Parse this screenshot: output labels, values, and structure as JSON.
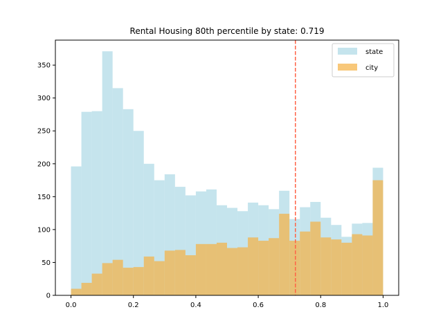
{
  "chart_data": {
    "type": "histogram",
    "title": "Rental Housing 80th percentile by state: 0.719",
    "xlabel": "",
    "ylabel": "",
    "xlim": [
      -0.05,
      1.05
    ],
    "ylim": [
      0,
      388
    ],
    "x_ticks": [
      0.0,
      0.2,
      0.4,
      0.6,
      0.8,
      1.0
    ],
    "x_tick_labels": [
      "0.0",
      "0.2",
      "0.4",
      "0.6",
      "0.8",
      "1.0"
    ],
    "y_ticks": [
      0,
      50,
      100,
      150,
      200,
      250,
      300,
      350
    ],
    "y_tick_labels": [
      "0",
      "50",
      "100",
      "150",
      "200",
      "250",
      "300",
      "350"
    ],
    "bins": 30,
    "bin_range": [
      0,
      1
    ],
    "series": [
      {
        "name": "state",
        "color": "#add8e6",
        "opacity": 0.7,
        "values": [
          196,
          279,
          280,
          371,
          315,
          283,
          250,
          200,
          175,
          184,
          165,
          152,
          158,
          161,
          137,
          133,
          128,
          141,
          137,
          131,
          159,
          116,
          134,
          142,
          118,
          107,
          89,
          109,
          110,
          194
        ]
      },
      {
        "name": "city",
        "color": "#f5b041",
        "opacity": 0.7,
        "values": [
          10,
          19,
          33,
          49,
          54,
          42,
          43,
          59,
          52,
          68,
          69,
          61,
          78,
          78,
          80,
          72,
          73,
          88,
          83,
          87,
          124,
          83,
          97,
          112,
          88,
          85,
          80,
          93,
          91,
          175
        ]
      }
    ],
    "vline": {
      "x": 0.719,
      "color": "#ff6347",
      "style": "dashed"
    },
    "legend": {
      "position": "top-right"
    },
    "grid": false
  }
}
